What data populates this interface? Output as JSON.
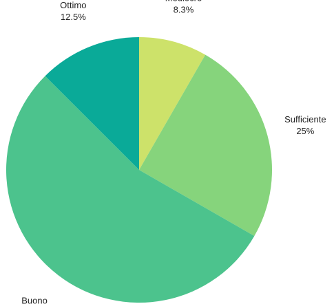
{
  "chart_data": {
    "type": "pie",
    "title": "",
    "slices": [
      {
        "name": "Mediocre",
        "value": 8.3,
        "label": "8.3%",
        "color": "#cde26a"
      },
      {
        "name": "Sufficiente",
        "value": 25,
        "label": "25%",
        "color": "#86d47c"
      },
      {
        "name": "Buono",
        "value": 54.2,
        "label": "54.2%",
        "color": "#4cc38d"
      },
      {
        "name": "Ottimo",
        "value": 12.5,
        "label": "12.5%",
        "color": "#0aaa98"
      }
    ],
    "start": "top",
    "direction": "clockwise",
    "legend": "none"
  }
}
